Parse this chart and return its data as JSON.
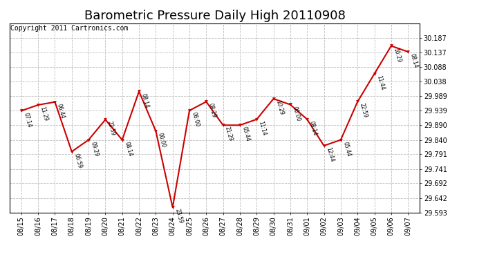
{
  "title": "Barometric Pressure Daily High 20110908",
  "copyright": "Copyright 2011 Cartronics.com",
  "x_labels": [
    "08/15",
    "08/16",
    "08/17",
    "08/18",
    "08/19",
    "08/20",
    "08/21",
    "08/22",
    "08/23",
    "08/24",
    "08/25",
    "08/26",
    "08/27",
    "08/28",
    "08/29",
    "08/30",
    "08/31",
    "09/01",
    "09/02",
    "09/03",
    "09/04",
    "09/05",
    "09/06",
    "09/07"
  ],
  "data_points": [
    {
      "date": "08/15",
      "time": "07:14",
      "value": 29.939
    },
    {
      "date": "08/16",
      "time": "11:29",
      "value": 29.959
    },
    {
      "date": "08/17",
      "time": "06:44",
      "value": 29.969
    },
    {
      "date": "08/18",
      "time": "06:59",
      "value": 29.8
    },
    {
      "date": "08/19",
      "time": "09:29",
      "value": 29.84
    },
    {
      "date": "08/20",
      "time": "22:59",
      "value": 29.909
    },
    {
      "date": "08/21",
      "time": "08:14",
      "value": 29.84
    },
    {
      "date": "08/22",
      "time": "08:14",
      "value": 30.005
    },
    {
      "date": "08/23",
      "time": "00:00",
      "value": 29.87
    },
    {
      "date": "08/24",
      "time": "23:59",
      "value": 29.61
    },
    {
      "date": "08/25",
      "time": "06:00",
      "value": 29.94
    },
    {
      "date": "08/26",
      "time": "08:29",
      "value": 29.97
    },
    {
      "date": "08/27",
      "time": "21:29",
      "value": 29.89
    },
    {
      "date": "08/28",
      "time": "05:44",
      "value": 29.89
    },
    {
      "date": "08/29",
      "time": "11:14",
      "value": 29.91
    },
    {
      "date": "08/30",
      "time": "10:29",
      "value": 29.98
    },
    {
      "date": "08/31",
      "time": "00:00",
      "value": 29.96
    },
    {
      "date": "09/01",
      "time": "08:14",
      "value": 29.91
    },
    {
      "date": "09/02",
      "time": "12:44",
      "value": 29.82
    },
    {
      "date": "09/03",
      "time": "05:44",
      "value": 29.84
    },
    {
      "date": "09/04",
      "time": "22:59",
      "value": 29.97
    },
    {
      "date": "09/05",
      "time": "11:44",
      "value": 30.065
    },
    {
      "date": "09/06",
      "time": "10:29",
      "value": 30.16
    },
    {
      "date": "09/07",
      "time": "08:14",
      "value": 30.14
    }
  ],
  "y_ticks": [
    29.593,
    29.642,
    29.692,
    29.741,
    29.791,
    29.84,
    29.89,
    29.939,
    29.989,
    30.038,
    30.088,
    30.137,
    30.187
  ],
  "y_min": 29.593,
  "y_max": 30.237,
  "line_color": "#cc0000",
  "marker_color": "#cc0000",
  "background_color": "#ffffff",
  "grid_color": "#bbbbbb",
  "title_fontsize": 13,
  "copyright_fontsize": 7
}
